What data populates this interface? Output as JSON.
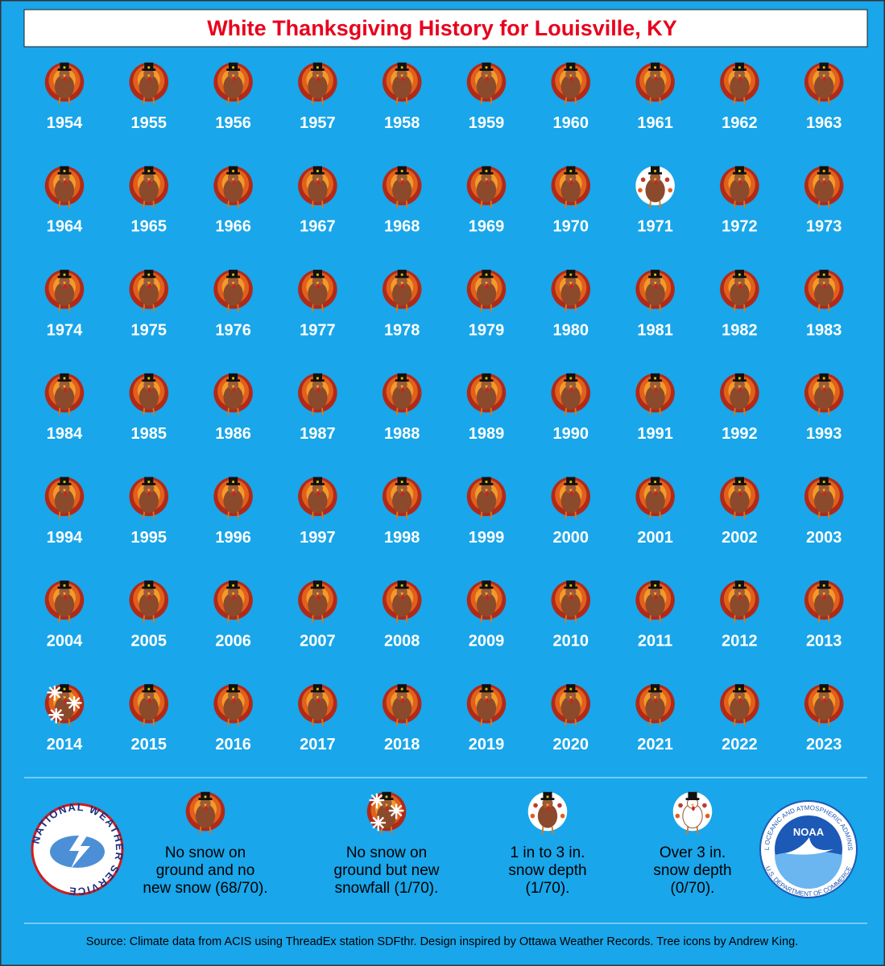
{
  "title": "White Thanksgiving History for Louisville, KY",
  "years": [
    "1954",
    "1955",
    "1956",
    "1957",
    "1958",
    "1959",
    "1960",
    "1961",
    "1962",
    "1963",
    "1964",
    "1965",
    "1966",
    "1967",
    "1968",
    "1969",
    "1970",
    "1971",
    "1972",
    "1973",
    "1974",
    "1975",
    "1976",
    "1977",
    "1978",
    "1979",
    "1980",
    "1981",
    "1982",
    "1983",
    "1984",
    "1985",
    "1986",
    "1987",
    "1988",
    "1989",
    "1990",
    "1991",
    "1992",
    "1993",
    "1994",
    "1995",
    "1996",
    "1997",
    "1998",
    "1999",
    "2000",
    "2001",
    "2002",
    "2003",
    "2004",
    "2005",
    "2006",
    "2007",
    "2008",
    "2009",
    "2010",
    "2011",
    "2012",
    "2013",
    "2014",
    "2015",
    "2016",
    "2017",
    "2018",
    "2019",
    "2020",
    "2021",
    "2022",
    "2023"
  ],
  "legend_index": [
    0,
    0,
    0,
    0,
    0,
    0,
    0,
    0,
    0,
    0,
    0,
    0,
    0,
    0,
    0,
    0,
    0,
    2,
    0,
    0,
    0,
    0,
    0,
    0,
    0,
    0,
    0,
    0,
    0,
    0,
    0,
    0,
    0,
    0,
    0,
    0,
    0,
    0,
    0,
    0,
    0,
    0,
    0,
    0,
    0,
    0,
    0,
    0,
    0,
    0,
    0,
    0,
    0,
    0,
    0,
    0,
    0,
    0,
    0,
    0,
    1,
    0,
    0,
    0,
    0,
    0,
    0,
    0,
    0,
    0
  ],
  "legend": [
    {
      "lines": [
        "No snow on",
        "ground and no",
        "new snow (68/70)."
      ]
    },
    {
      "lines": [
        "No snow on",
        "ground but new",
        "snowfall (1/70)."
      ]
    },
    {
      "lines": [
        "1 in to 3 in.",
        "snow depth",
        "(1/70)."
      ]
    },
    {
      "lines": [
        "Over 3 in.",
        "snow depth",
        "(0/70)."
      ]
    }
  ],
  "logos": {
    "nws": "NATIONAL WEATHER SERVICE",
    "noaa_top": "NATIONAL OCEANIC AND ATMOSPHERIC ADMINISTRATION",
    "noaa_bottom": "U.S. DEPARTMENT OF COMMERCE",
    "noaa_center": "NOAA"
  },
  "source": "Source: Climate data from ACIS using ThreadEx station SDFthr. Design inspired by Ottawa Weather Records. Tree icons by Andrew King."
}
